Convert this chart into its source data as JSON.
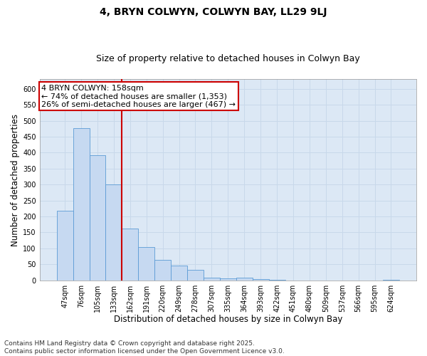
{
  "title": "4, BRYN COLWYN, COLWYN BAY, LL29 9LJ",
  "subtitle": "Size of property relative to detached houses in Colwyn Bay",
  "xlabel": "Distribution of detached houses by size in Colwyn Bay",
  "ylabel": "Number of detached properties",
  "categories": [
    "47sqm",
    "76sqm",
    "105sqm",
    "133sqm",
    "162sqm",
    "191sqm",
    "220sqm",
    "249sqm",
    "278sqm",
    "307sqm",
    "335sqm",
    "364sqm",
    "393sqm",
    "422sqm",
    "451sqm",
    "480sqm",
    "509sqm",
    "537sqm",
    "566sqm",
    "595sqm",
    "624sqm"
  ],
  "values": [
    218,
    478,
    393,
    301,
    163,
    105,
    63,
    47,
    32,
    7,
    5,
    8,
    4,
    1,
    0,
    0,
    0,
    0,
    0,
    0,
    1
  ],
  "bar_color": "#c6d9f1",
  "bar_edge_color": "#5b9bd5",
  "vline_index": 4,
  "vline_color": "#cc0000",
  "annotation_line1": "4 BRYN COLWYN: 158sqm",
  "annotation_line2": "← 74% of detached houses are smaller (1,353)",
  "annotation_line3": "26% of semi-detached houses are larger (467) →",
  "annotation_box_facecolor": "#ffffff",
  "annotation_box_edgecolor": "#cc0000",
  "ylim": [
    0,
    630
  ],
  "yticks": [
    0,
    50,
    100,
    150,
    200,
    250,
    300,
    350,
    400,
    450,
    500,
    550,
    600
  ],
  "grid_color": "#c8d8ea",
  "background_color": "#dce8f5",
  "footer_line1": "Contains HM Land Registry data © Crown copyright and database right 2025.",
  "footer_line2": "Contains public sector information licensed under the Open Government Licence v3.0.",
  "title_fontsize": 10,
  "subtitle_fontsize": 9,
  "axis_label_fontsize": 8.5,
  "tick_fontsize": 7,
  "annotation_fontsize": 8,
  "footer_fontsize": 6.5
}
